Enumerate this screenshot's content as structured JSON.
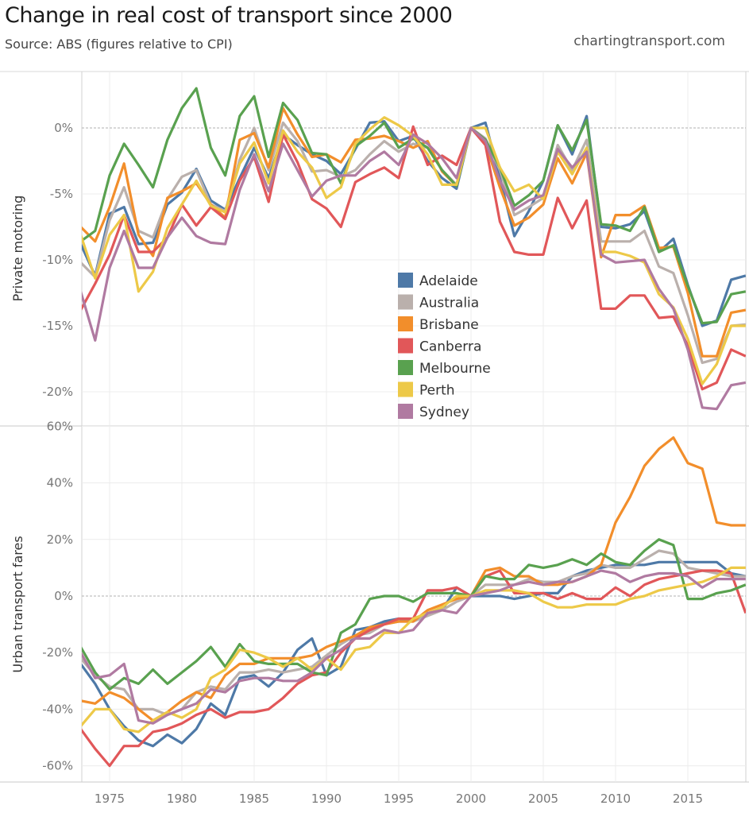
{
  "header": {
    "title": "Change in real cost of transport since 2000",
    "subtitle": "Source: ABS (figures relative to CPI)",
    "site": "chartingtransport.com"
  },
  "chart_data": [
    {
      "type": "line",
      "title": "Private motoring",
      "ylabel": "Private motoring",
      "xlim": [
        1973,
        2019
      ],
      "ylim": [
        -22.5,
        4.5
      ],
      "yticks": [
        0,
        -5,
        -10,
        -15,
        -20
      ],
      "ytick_labels": [
        "0%",
        "-5%",
        "-10%",
        "-15%",
        "-20%"
      ],
      "grid": true,
      "legend": "center-right",
      "x": [
        1973,
        1974,
        1975,
        1976,
        1977,
        1978,
        1979,
        1980,
        1981,
        1982,
        1983,
        1984,
        1985,
        1986,
        1987,
        1988,
        1989,
        1990,
        1991,
        1992,
        1993,
        1994,
        1995,
        1996,
        1997,
        1998,
        1999,
        2000,
        2001,
        2002,
        2003,
        2004,
        2005,
        2006,
        2007,
        2008,
        2009,
        2010,
        2011,
        2012,
        2013,
        2014,
        2015,
        2016,
        2017,
        2018,
        2019
      ],
      "series": [
        {
          "name": "Adelaide",
          "color": "#4E79A7",
          "values": [
            -8.8,
            -11.2,
            -6.5,
            -6.0,
            -8.8,
            -8.7,
            -5.8,
            -4.9,
            -3.1,
            -5.5,
            -6.2,
            -3.8,
            -1.5,
            -3.8,
            -0.5,
            -1.3,
            -2.0,
            -2.5,
            -3.5,
            -1.6,
            0.4,
            0.5,
            -1.0,
            -0.6,
            -2.5,
            -3.8,
            -4.6,
            0.0,
            0.4,
            -3.8,
            -8.2,
            -6.3,
            -4.0,
            0.2,
            -2.0,
            0.9,
            -7.5,
            -7.6,
            -7.3,
            -6.3,
            -9.4,
            -8.4,
            -11.9,
            -15.0,
            -14.6,
            -11.5,
            -11.2
          ]
        },
        {
          "name": "Australia",
          "color": "#BAB0AC",
          "values": [
            -10.2,
            -11.3,
            -7.0,
            -4.5,
            -7.8,
            -8.3,
            -5.4,
            -3.7,
            -3.2,
            -5.8,
            -6.3,
            -2.4,
            0.0,
            -3.2,
            0.4,
            -1.0,
            -3.3,
            -3.2,
            -3.7,
            -3.2,
            -2.0,
            -1.0,
            -1.8,
            -1.2,
            -1.5,
            -3.2,
            -4.3,
            0.0,
            -0.8,
            -3.2,
            -6.6,
            -6.0,
            -5.3,
            -1.3,
            -3.2,
            -0.9,
            -8.6,
            -8.6,
            -8.6,
            -7.8,
            -10.5,
            -11.0,
            -14.2,
            -17.8,
            -17.5,
            -15.0,
            -14.9
          ]
        },
        {
          "name": "Brisbane",
          "color": "#F28E2B",
          "values": [
            -7.5,
            -8.6,
            -6.0,
            -2.7,
            -8.1,
            -9.7,
            -5.3,
            -4.8,
            -4.2,
            -5.8,
            -6.8,
            -0.9,
            -0.4,
            -3.0,
            1.5,
            -0.5,
            -2.2,
            -2.0,
            -2.6,
            -0.9,
            -0.8,
            -0.6,
            -1.0,
            -1.5,
            -1.0,
            -3.3,
            -4.4,
            0.0,
            -1.2,
            -4.5,
            -7.4,
            -6.8,
            -5.8,
            -2.3,
            -4.2,
            -1.9,
            -9.8,
            -6.6,
            -6.6,
            -5.9,
            -9.1,
            -9.0,
            -12.5,
            -17.3,
            -17.3,
            -14.0,
            -13.8
          ]
        },
        {
          "name": "Canberra",
          "color": "#E15759",
          "values": [
            -13.8,
            -11.8,
            -9.6,
            -6.6,
            -9.4,
            -9.4,
            -8.3,
            -5.8,
            -7.4,
            -6.0,
            -6.9,
            -4.0,
            -2.2,
            -5.6,
            -0.5,
            -2.6,
            -5.4,
            -6.1,
            -7.5,
            -4.1,
            -3.5,
            -3.0,
            -3.8,
            0.1,
            -2.8,
            -2.1,
            -2.8,
            0.0,
            -1.3,
            -7.1,
            -9.4,
            -9.6,
            -9.6,
            -5.3,
            -7.6,
            -5.5,
            -13.7,
            -13.7,
            -12.7,
            -12.7,
            -14.4,
            -14.3,
            -16.5,
            -19.8,
            -19.3,
            -16.8,
            -17.3
          ]
        },
        {
          "name": "Melbourne",
          "color": "#59A14F",
          "values": [
            -8.6,
            -7.8,
            -3.6,
            -1.2,
            -2.8,
            -4.5,
            -0.9,
            1.5,
            3.0,
            -1.5,
            -3.6,
            0.9,
            2.4,
            -2.2,
            1.9,
            0.6,
            -1.9,
            -2.0,
            -4.2,
            -1.4,
            -0.6,
            0.4,
            -1.5,
            -0.8,
            -1.5,
            -3.2,
            -4.4,
            0.0,
            -0.9,
            -3.0,
            -5.9,
            -5.1,
            -4.0,
            0.2,
            -1.7,
            0.6,
            -7.3,
            -7.4,
            -7.8,
            -6.0,
            -9.4,
            -8.9,
            -12.0,
            -14.8,
            -14.7,
            -12.6,
            -12.4
          ]
        },
        {
          "name": "Perth",
          "color": "#EDC948",
          "values": [
            -8.1,
            -11.4,
            -8.1,
            -6.6,
            -12.4,
            -10.9,
            -7.6,
            -5.8,
            -4.0,
            -5.9,
            -6.4,
            -2.7,
            -1.1,
            -4.2,
            -0.2,
            -1.8,
            -3.0,
            -5.3,
            -4.5,
            -1.2,
            -0.1,
            0.8,
            0.2,
            -0.6,
            -2.0,
            -4.3,
            -4.3,
            0.0,
            0.0,
            -3.0,
            -4.8,
            -4.3,
            -5.4,
            -1.8,
            -3.5,
            -1.5,
            -9.4,
            -9.4,
            -9.7,
            -10.2,
            -12.6,
            -13.6,
            -16.0,
            -19.4,
            -17.9,
            -15.0,
            -15.0
          ]
        },
        {
          "name": "Sydney",
          "color": "#B07AA1",
          "values": [
            -12.4,
            -16.1,
            -10.6,
            -7.8,
            -10.6,
            -10.6,
            -8.3,
            -6.8,
            -8.2,
            -8.7,
            -8.8,
            -4.7,
            -2.0,
            -4.8,
            -1.2,
            -3.2,
            -5.2,
            -4.0,
            -3.6,
            -3.6,
            -2.5,
            -1.8,
            -2.8,
            -0.5,
            -1.2,
            -2.3,
            -3.8,
            0.0,
            -1.0,
            -4.0,
            -6.2,
            -5.5,
            -5.1,
            -1.6,
            -3.0,
            -1.8,
            -9.6,
            -10.2,
            -10.1,
            -10.0,
            -12.2,
            -13.7,
            -16.8,
            -21.2,
            -21.3,
            -19.5,
            -19.3
          ]
        }
      ]
    },
    {
      "type": "line",
      "title": "Urban transport fares",
      "ylabel": "Urban transport fares",
      "xlabel": "",
      "xlim": [
        1973,
        2019
      ],
      "ylim": [
        -66,
        64
      ],
      "yticks": [
        60,
        40,
        20,
        0,
        -20,
        -40,
        -60
      ],
      "ytick_labels": [
        "60%",
        "40%",
        "20%",
        "0%",
        "-20%",
        "-40%",
        "-60%"
      ],
      "xticks": [
        1975,
        1980,
        1985,
        1990,
        1995,
        2000,
        2005,
        2010,
        2015
      ],
      "xtick_labels": [
        "1975",
        "1980",
        "1985",
        "1990",
        "1995",
        "2000",
        "2005",
        "2010",
        "2015"
      ],
      "grid": true,
      "x": [
        1973,
        1974,
        1975,
        1976,
        1977,
        1978,
        1979,
        1980,
        1981,
        1982,
        1983,
        1984,
        1985,
        1986,
        1987,
        1988,
        1989,
        1990,
        1991,
        1992,
        1993,
        1994,
        1995,
        1996,
        1997,
        1998,
        1999,
        2000,
        2001,
        2002,
        2003,
        2004,
        2005,
        2006,
        2007,
        2008,
        2009,
        2010,
        2011,
        2012,
        2013,
        2014,
        2015,
        2016,
        2017,
        2018,
        2019
      ],
      "series": [
        {
          "name": "Adelaide",
          "color": "#4E79A7",
          "values": [
            -24,
            -31,
            -40,
            -46,
            -51,
            -53,
            -49,
            -52,
            -47,
            -38,
            -42,
            -29,
            -28,
            -32,
            -27,
            -19,
            -15,
            -28,
            -25,
            -12,
            -11,
            -9,
            -8,
            -9,
            -6,
            -5,
            3,
            0,
            0,
            0,
            -1,
            0,
            1,
            1,
            7,
            9,
            10,
            11,
            11,
            11,
            12,
            12,
            12,
            12,
            12,
            8,
            7
          ]
        },
        {
          "name": "Australia",
          "color": "#BAB0AC",
          "values": [
            -22,
            -28,
            -32,
            -33,
            -40,
            -40,
            -42,
            -40,
            -34,
            -32,
            -33,
            -27,
            -27,
            -26,
            -27,
            -26,
            -25,
            -21,
            -17,
            -14,
            -13,
            -10,
            -9,
            -9,
            -7,
            -5,
            -2,
            0,
            4,
            4,
            4,
            6,
            5,
            5,
            7,
            8,
            11,
            10,
            10,
            13,
            16,
            15,
            10,
            9,
            8,
            7,
            7
          ]
        },
        {
          "name": "Brisbane",
          "color": "#F28E2B",
          "values": [
            -37,
            -38,
            -34,
            -36,
            -40,
            -44,
            -41,
            -37,
            -34,
            -36,
            -28,
            -24,
            -24,
            -22,
            -22,
            -22,
            -21,
            -18,
            -16,
            -14,
            -11,
            -10,
            -9,
            -9,
            -5,
            -3,
            -1,
            0,
            9,
            10,
            7,
            7,
            4,
            4,
            5,
            7,
            11,
            26,
            35,
            46,
            52,
            56,
            47,
            45,
            26,
            25,
            25
          ]
        },
        {
          "name": "Canberra",
          "color": "#E15759",
          "values": [
            -47,
            -54,
            -60,
            -53,
            -53,
            -48,
            -47,
            -45,
            -42,
            -40,
            -43,
            -41,
            -41,
            -40,
            -36,
            -31,
            -28,
            -27,
            -20,
            -15,
            -12,
            -10,
            -8,
            -8,
            2,
            2,
            3,
            0,
            7,
            9,
            1,
            1,
            1,
            -1,
            1,
            -1,
            -1,
            3,
            0,
            4,
            6,
            7,
            8,
            9,
            9,
            8,
            -6
          ]
        },
        {
          "name": "Melbourne",
          "color": "#59A14F",
          "values": [
            -18,
            -27,
            -33,
            -29,
            -31,
            -26,
            -31,
            -27,
            -23,
            -18,
            -25,
            -17,
            -23,
            -24,
            -24,
            -24,
            -27,
            -28,
            -13,
            -10,
            -1,
            0,
            0,
            -2,
            1,
            1,
            1,
            0,
            7,
            6,
            6,
            11,
            10,
            11,
            13,
            11,
            15,
            12,
            11,
            16,
            20,
            18,
            -1,
            -1,
            1,
            2,
            4
          ]
        },
        {
          "name": "Perth",
          "color": "#EDC948",
          "values": [
            -46,
            -40,
            -40,
            -47,
            -48,
            -44,
            -41,
            -43,
            -40,
            -29,
            -26,
            -19,
            -20,
            -22,
            -25,
            -22,
            -26,
            -22,
            -26,
            -19,
            -18,
            -13,
            -13,
            -8,
            -6,
            -4,
            0,
            0,
            2,
            2,
            2,
            1,
            -2,
            -4,
            -4,
            -3,
            -3,
            -3,
            -1,
            0,
            2,
            3,
            4,
            5,
            7,
            10,
            10
          ]
        },
        {
          "name": "Sydney",
          "color": "#B07AA1",
          "values": [
            -20,
            -29,
            -28,
            -24,
            -44,
            -45,
            -42,
            -40,
            -38,
            -33,
            -34,
            -30,
            -29,
            -29,
            -30,
            -30,
            -27,
            -22,
            -19,
            -15,
            -15,
            -12,
            -13,
            -12,
            -6,
            -5,
            -6,
            0,
            1,
            2,
            4,
            5,
            4,
            5,
            5,
            7,
            9,
            8,
            5,
            7,
            8,
            8,
            7,
            3,
            6,
            6,
            6
          ]
        }
      ]
    }
  ],
  "legend": {
    "items": [
      {
        "label": "Adelaide",
        "color": "#4E79A7"
      },
      {
        "label": "Australia",
        "color": "#BAB0AC"
      },
      {
        "label": "Brisbane",
        "color": "#F28E2B"
      },
      {
        "label": "Canberra",
        "color": "#E15759"
      },
      {
        "label": "Melbourne",
        "color": "#59A14F"
      },
      {
        "label": "Perth",
        "color": "#EDC948"
      },
      {
        "label": "Sydney",
        "color": "#B07AA1"
      }
    ]
  }
}
